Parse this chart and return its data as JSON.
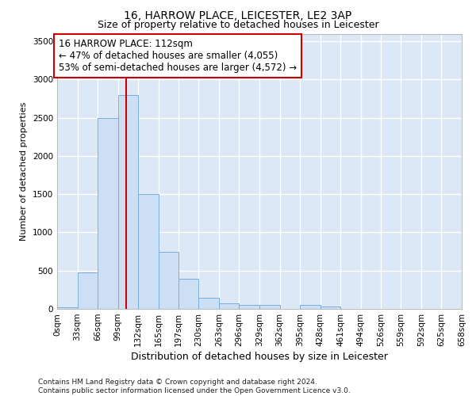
{
  "title": "16, HARROW PLACE, LEICESTER, LE2 3AP",
  "subtitle": "Size of property relative to detached houses in Leicester",
  "xlabel": "Distribution of detached houses by size in Leicester",
  "ylabel": "Number of detached properties",
  "bar_color": "#ccdff5",
  "bar_edge_color": "#7aaddb",
  "bg_color": "#dce8f5",
  "grid_color": "#ffffff",
  "annotation_line_color": "#cc0000",
  "annotation_box_color": "#cc0000",
  "annotation_text": "16 HARROW PLACE: 112sqm\n← 47% of detached houses are smaller (4,055)\n53% of semi-detached houses are larger (4,572) →",
  "property_sqm": 112,
  "bin_edges": [
    0,
    33,
    66,
    99,
    132,
    165,
    197,
    230,
    263,
    296,
    329,
    362,
    395,
    428,
    461,
    494,
    526,
    559,
    592,
    625,
    658
  ],
  "bin_labels": [
    "0sqm",
    "33sqm",
    "66sqm",
    "99sqm",
    "132sqm",
    "165sqm",
    "197sqm",
    "230sqm",
    "263sqm",
    "296sqm",
    "329sqm",
    "362sqm",
    "395sqm",
    "428sqm",
    "461sqm",
    "494sqm",
    "526sqm",
    "559sqm",
    "592sqm",
    "625sqm",
    "658sqm"
  ],
  "bar_heights": [
    25,
    480,
    2500,
    2800,
    1500,
    750,
    390,
    145,
    75,
    55,
    55,
    0,
    55,
    30,
    0,
    0,
    0,
    0,
    0,
    0
  ],
  "ylim": [
    0,
    3600
  ],
  "yticks": [
    0,
    500,
    1000,
    1500,
    2000,
    2500,
    3000,
    3500
  ],
  "footnote": "Contains HM Land Registry data © Crown copyright and database right 2024.\nContains public sector information licensed under the Open Government Licence v3.0.",
  "title_fontsize": 10,
  "subtitle_fontsize": 9,
  "ylabel_fontsize": 8,
  "xlabel_fontsize": 9,
  "tick_fontsize": 7.5,
  "annot_fontsize": 8.5,
  "footnote_fontsize": 6.5
}
